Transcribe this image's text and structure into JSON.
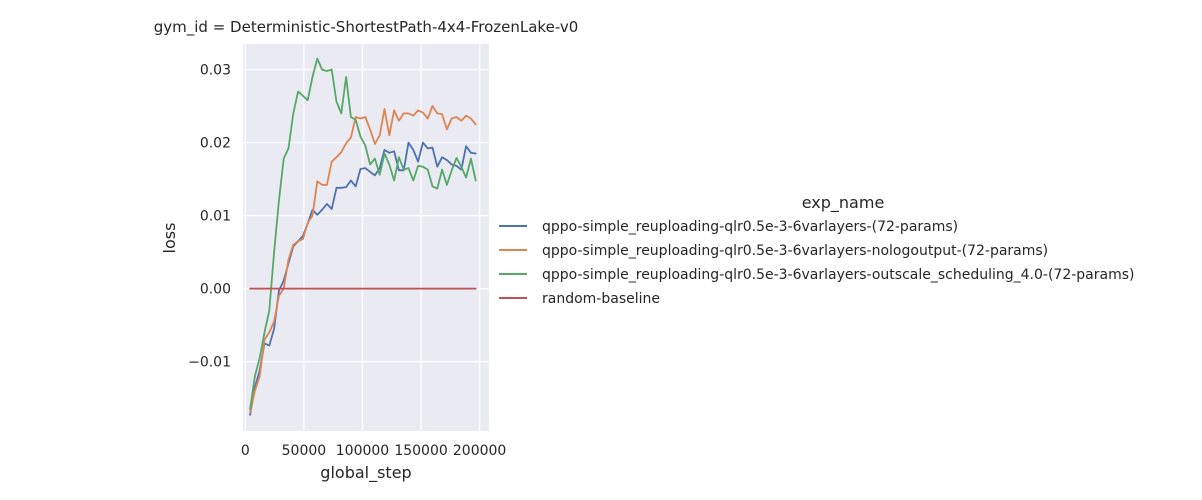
{
  "chart_data": {
    "type": "line",
    "title": "gym_id = Deterministic-ShortestPath-4x4-FrozenLake-v0",
    "xlabel": "global_step",
    "ylabel": "loss",
    "xlim": [
      -2000,
      208000
    ],
    "ylim": [
      -0.0195,
      0.0335
    ],
    "xticks": [
      0,
      50000,
      100000,
      150000,
      200000
    ],
    "xtick_labels": [
      "0",
      "50000",
      "100000",
      "150000",
      "200000"
    ],
    "yticks": [
      -0.01,
      0.0,
      0.01,
      0.02,
      0.03
    ],
    "ytick_labels": [
      "−0.01",
      "0.00",
      "0.01",
      "0.02",
      "0.03"
    ],
    "grid": true,
    "legend": {
      "title": "exp_name",
      "placement": "right"
    },
    "series": [
      {
        "name": "qppo-simple_reuploading-qlr0.5e-3-6varlayers-(72-params)",
        "color": "#4c72b0",
        "x": [
          4096,
          8192,
          12288,
          16384,
          20480,
          24576,
          28672,
          32768,
          36864,
          40960,
          45056,
          49152,
          53248,
          57344,
          61440,
          65536,
          69632,
          73728,
          77824,
          81920,
          86016,
          90112,
          94208,
          98304,
          102400,
          106496,
          110592,
          114688,
          118784,
          122880,
          126976,
          131072,
          135168,
          139264,
          143360,
          147456,
          151552,
          155648,
          159744,
          163840,
          167936,
          172032,
          176128,
          180224,
          184320,
          188416,
          192512,
          196608
        ],
        "y": [
          -0.0173,
          -0.0135,
          -0.0112,
          -0.0075,
          -0.0078,
          -0.0055,
          -0.0003,
          0.0011,
          0.0035,
          0.0058,
          0.0065,
          0.0072,
          0.0089,
          0.0108,
          0.0101,
          0.0108,
          0.0116,
          0.0109,
          0.0138,
          0.0138,
          0.0139,
          0.0148,
          0.014,
          0.0164,
          0.0165,
          0.016,
          0.0155,
          0.0165,
          0.019,
          0.0186,
          0.0188,
          0.0162,
          0.0162,
          0.02,
          0.019,
          0.0174,
          0.02,
          0.0192,
          0.0193,
          0.0167,
          0.018,
          0.0176,
          0.017,
          0.0168,
          0.0163,
          0.0195,
          0.0186,
          0.0185
        ]
      },
      {
        "name": "qppo-simple_reuploading-qlr0.5e-3-6varlayers-nologoutput-(72-params)",
        "color": "#dd8452",
        "x": [
          4096,
          8192,
          12288,
          16384,
          20480,
          24576,
          28672,
          32768,
          36864,
          40960,
          45056,
          49152,
          53248,
          57344,
          61440,
          65536,
          69632,
          73728,
          77824,
          81920,
          86016,
          90112,
          94208,
          98304,
          102400,
          106496,
          110592,
          114688,
          118784,
          122880,
          126976,
          131072,
          135168,
          139264,
          143360,
          147456,
          151552,
          155648,
          159744,
          163840,
          167936,
          172032,
          176128,
          180224,
          184320,
          188416,
          192512,
          196608
        ],
        "y": [
          -0.017,
          -0.014,
          -0.012,
          -0.007,
          -0.006,
          -0.0045,
          -0.001,
          0.0,
          0.004,
          0.006,
          0.0065,
          0.0068,
          0.009,
          0.01,
          0.0147,
          0.0142,
          0.0142,
          0.0174,
          0.018,
          0.0187,
          0.0199,
          0.0207,
          0.0235,
          0.0233,
          0.0235,
          0.0218,
          0.0198,
          0.021,
          0.0246,
          0.021,
          0.0244,
          0.023,
          0.024,
          0.024,
          0.0237,
          0.0244,
          0.0241,
          0.0233,
          0.025,
          0.024,
          0.0239,
          0.0218,
          0.0233,
          0.0235,
          0.023,
          0.0237,
          0.0233,
          0.0225
        ]
      },
      {
        "name": "qppo-simple_reuploading-qlr0.5e-3-6varlayers-outscale_scheduling_4.0-(72-params)",
        "color": "#55a868",
        "x": [
          4096,
          8192,
          12288,
          16384,
          20480,
          24576,
          28672,
          32768,
          36864,
          40960,
          45056,
          49152,
          53248,
          57344,
          61440,
          65536,
          69632,
          73728,
          77824,
          81920,
          86016,
          90112,
          94208,
          98304,
          102400,
          106496,
          110592,
          114688,
          118784,
          122880,
          126976,
          131072,
          135168,
          139264,
          143360,
          147456,
          151552,
          155648,
          159744,
          163840,
          167936,
          172032,
          176128,
          180224,
          184320,
          188416,
          192512,
          196608
        ],
        "y": [
          -0.0165,
          -0.012,
          -0.0095,
          -0.006,
          -0.003,
          0.005,
          0.012,
          0.0178,
          0.0192,
          0.024,
          0.027,
          0.0264,
          0.0258,
          0.029,
          0.0315,
          0.03,
          0.0298,
          0.03,
          0.0256,
          0.024,
          0.029,
          0.0235,
          0.0231,
          0.0208,
          0.0196,
          0.017,
          0.0178,
          0.0156,
          0.0185,
          0.017,
          0.0148,
          0.018,
          0.0163,
          0.0165,
          0.0148,
          0.0168,
          0.0167,
          0.0163,
          0.014,
          0.0137,
          0.0163,
          0.0142,
          0.0162,
          0.0179,
          0.0167,
          0.0152,
          0.0178,
          0.0148
        ]
      },
      {
        "name": "random-baseline",
        "color": "#c44e52",
        "x": [
          4096,
          196608
        ],
        "y": [
          0.0,
          0.0
        ]
      }
    ]
  }
}
